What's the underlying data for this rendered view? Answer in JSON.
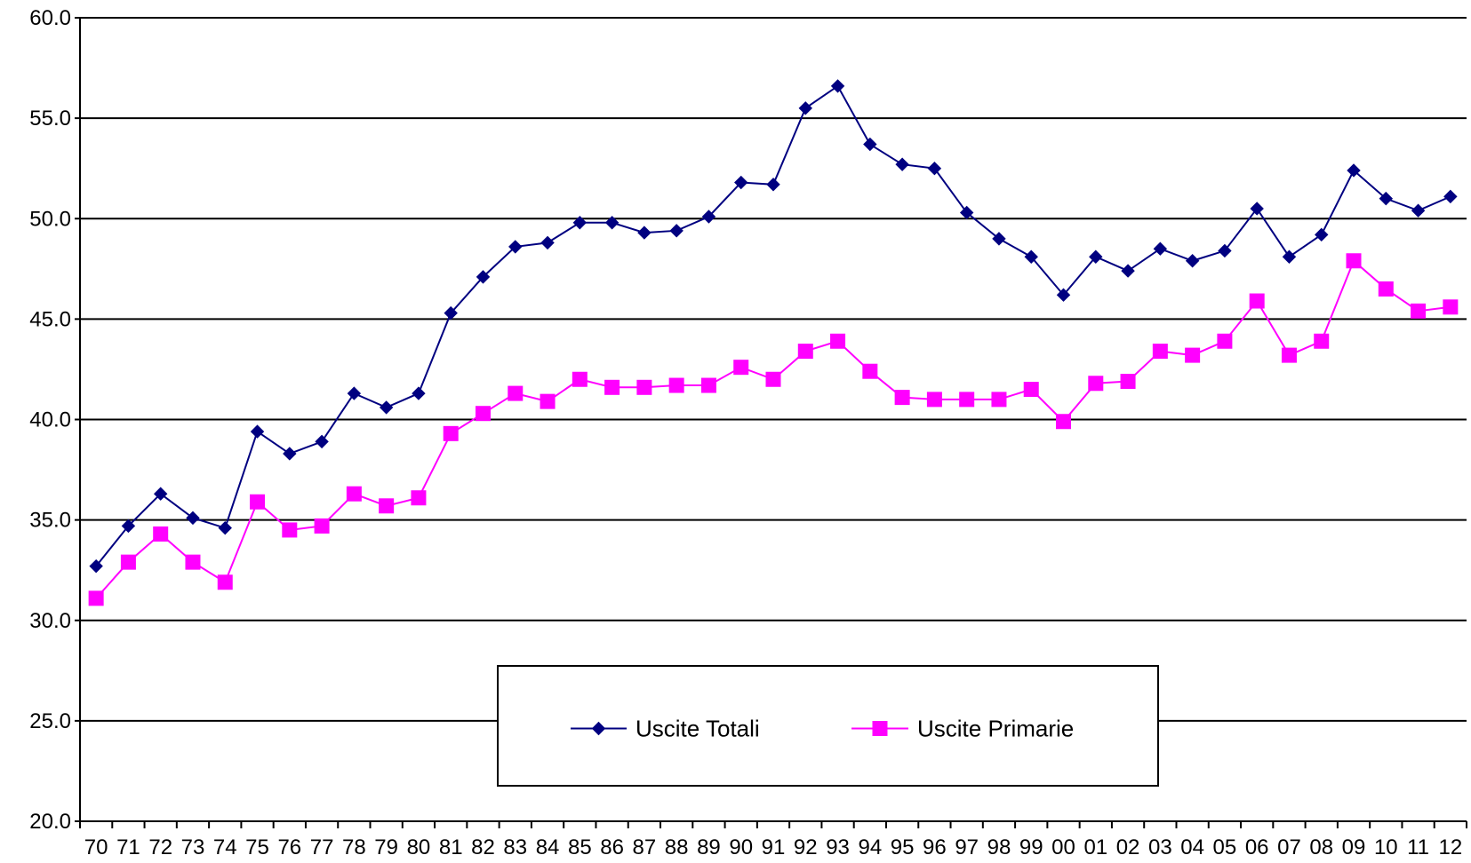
{
  "chart_data": {
    "type": "line",
    "title": "",
    "xlabel": "",
    "ylabel": "",
    "categories": [
      "70",
      "71",
      "72",
      "73",
      "74",
      "75",
      "76",
      "77",
      "78",
      "79",
      "80",
      "81",
      "82",
      "83",
      "84",
      "85",
      "86",
      "87",
      "88",
      "89",
      "90",
      "91",
      "92",
      "93",
      "94",
      "95",
      "96",
      "97",
      "98",
      "99",
      "00",
      "01",
      "02",
      "03",
      "04",
      "05",
      "06",
      "07",
      "08",
      "09",
      "10",
      "11",
      "12"
    ],
    "ylim": [
      20,
      60
    ],
    "yticks": [
      "20.0",
      "25.0",
      "30.0",
      "35.0",
      "40.0",
      "45.0",
      "50.0",
      "55.0",
      "60.0"
    ],
    "grid": true,
    "legend_position": "bottom-center",
    "series": [
      {
        "name": "Uscite Totali",
        "color": "#000080",
        "marker": "diamond",
        "values": [
          32.7,
          34.7,
          36.3,
          35.1,
          34.6,
          39.4,
          38.3,
          38.9,
          41.3,
          40.6,
          41.3,
          45.3,
          47.1,
          48.6,
          48.8,
          49.8,
          49.8,
          49.3,
          49.4,
          50.1,
          51.8,
          51.7,
          55.5,
          56.6,
          53.7,
          52.7,
          52.5,
          50.3,
          49.0,
          48.1,
          46.2,
          48.1,
          47.4,
          48.5,
          47.9,
          48.4,
          50.5,
          48.1,
          49.2,
          52.4,
          51.0,
          50.4,
          51.1
        ]
      },
      {
        "name": "Uscite Primarie",
        "color": "#FF00FF",
        "marker": "square",
        "values": [
          31.1,
          32.9,
          34.3,
          32.9,
          31.9,
          35.9,
          34.5,
          34.7,
          36.3,
          35.7,
          36.1,
          39.3,
          40.3,
          41.3,
          40.9,
          42.0,
          41.6,
          41.6,
          41.7,
          41.7,
          42.6,
          42.0,
          43.4,
          43.9,
          42.4,
          41.1,
          41.0,
          41.0,
          41.0,
          41.5,
          39.9,
          41.8,
          41.9,
          43.4,
          43.2,
          43.9,
          45.9,
          43.2,
          43.9,
          47.9,
          46.5,
          45.4,
          45.6
        ]
      }
    ]
  }
}
